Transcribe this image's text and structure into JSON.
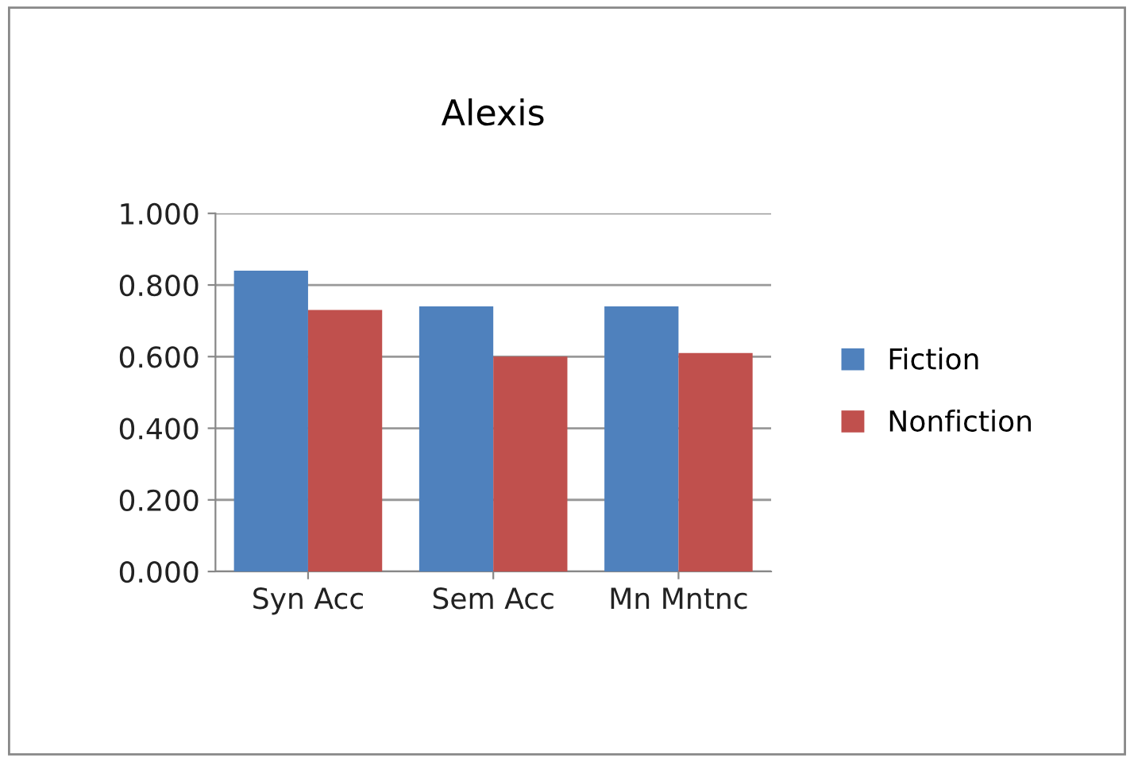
{
  "chart_data": {
    "type": "bar",
    "title": "Alexis",
    "categories": [
      "Syn Acc",
      "Sem Acc",
      "Mn Mntnc"
    ],
    "series": [
      {
        "name": "Fiction",
        "color": "#4f81bd",
        "values": [
          0.84,
          0.74,
          0.74
        ]
      },
      {
        "name": "Nonfiction",
        "color": "#c0504d",
        "values": [
          0.73,
          0.6,
          0.61
        ]
      }
    ],
    "ylim": [
      0,
      1
    ],
    "yticks": [
      {
        "value": 0,
        "label": "0.000"
      },
      {
        "value": 0.2,
        "label": "0.200"
      },
      {
        "value": 0.4,
        "label": "0.400"
      },
      {
        "value": 0.6,
        "label": "0.600"
      },
      {
        "value": 0.8,
        "label": "0.800"
      },
      {
        "value": 1,
        "label": "1.000"
      }
    ],
    "grid": "y",
    "legend": "right"
  }
}
